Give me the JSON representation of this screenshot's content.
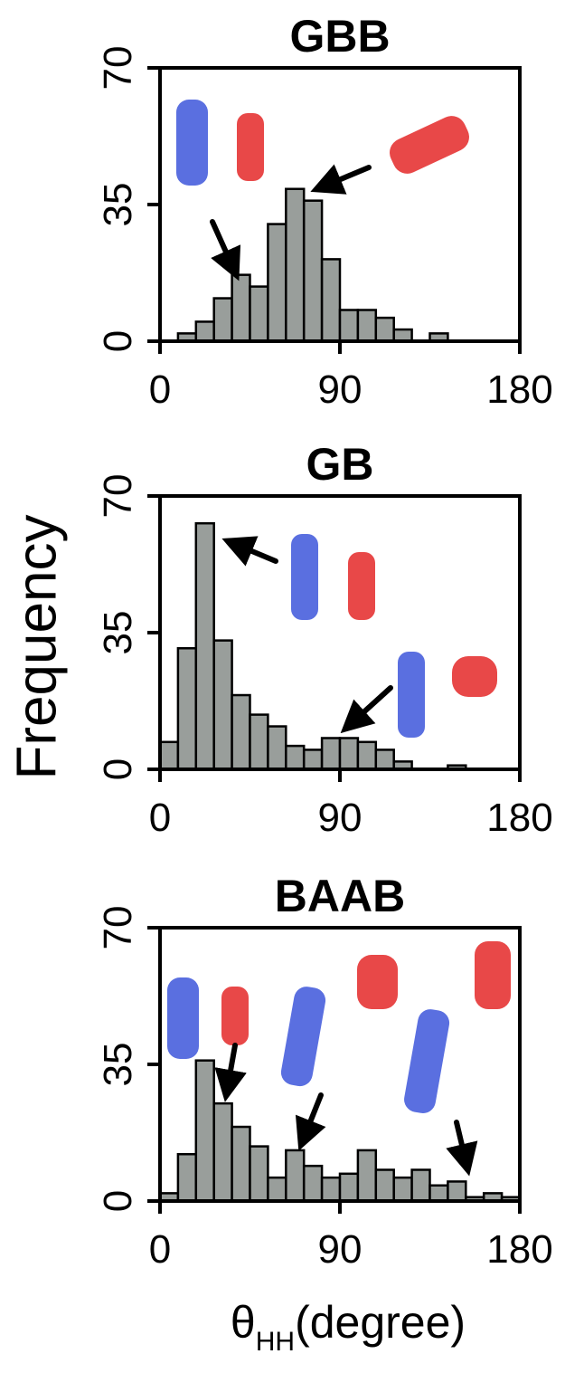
{
  "chart_data": [
    {
      "type": "histogram",
      "title": "GBB",
      "color": "#999e9b",
      "bins": [
        0,
        9,
        18,
        27,
        36,
        45,
        54,
        63,
        72,
        81,
        90,
        99,
        108,
        117,
        126,
        135,
        144,
        153,
        162,
        171,
        180
      ],
      "values": [
        0,
        2,
        5,
        11,
        17,
        14,
        30,
        39,
        36,
        21,
        8,
        8,
        6,
        3,
        0,
        2,
        0,
        0,
        0,
        0
      ],
      "xlim": [
        0,
        180
      ],
      "xticks": [
        0,
        90,
        180
      ],
      "ylim": [
        0,
        70
      ],
      "yticks": [
        0,
        35,
        70
      ]
    },
    {
      "type": "histogram",
      "title": "GB",
      "color": "#999e9b",
      "y_label": "Frequency",
      "bins": [
        0,
        9,
        18,
        27,
        36,
        45,
        54,
        63,
        72,
        81,
        90,
        99,
        108,
        117,
        126,
        135,
        144,
        153,
        162,
        171,
        180
      ],
      "values": [
        7,
        31,
        63,
        33,
        19,
        14,
        11,
        6,
        5,
        8,
        8,
        7,
        5,
        2,
        0,
        0,
        1,
        0,
        0,
        0
      ],
      "xlim": [
        0,
        180
      ],
      "xticks": [
        0,
        90,
        180
      ],
      "ylim": [
        0,
        70
      ],
      "yticks": [
        0,
        35,
        70
      ]
    },
    {
      "type": "histogram",
      "title": "BAAB",
      "color": "#999e9b",
      "x_label": "θ",
      "x_label_subscript": "HH",
      "x_label_unit": "(degree)",
      "bins": [
        0,
        9,
        18,
        27,
        36,
        45,
        54,
        63,
        72,
        81,
        90,
        99,
        108,
        117,
        126,
        135,
        144,
        153,
        162,
        171,
        180
      ],
      "values": [
        2,
        12,
        36,
        25,
        19,
        14,
        6,
        13,
        9,
        6,
        7,
        13,
        8,
        6,
        8,
        4,
        5,
        1,
        2,
        1
      ],
      "xlim": [
        0,
        180
      ],
      "xticks": [
        0,
        90,
        180
      ],
      "ylim": [
        0,
        70
      ],
      "yticks": [
        0,
        35,
        70
      ]
    }
  ]
}
